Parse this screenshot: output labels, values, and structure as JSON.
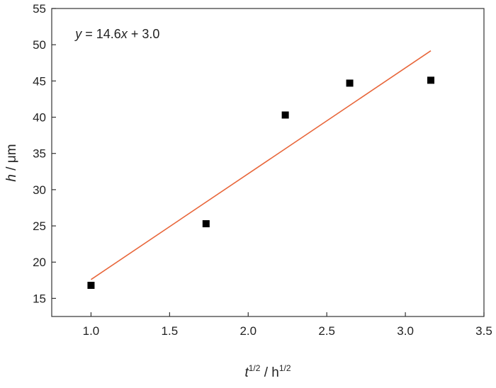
{
  "chart_data": {
    "type": "scatter",
    "title": "",
    "xlabel": {
      "var": "t",
      "var_sup": "1/2",
      "sep": " / h",
      "unit_sup": "1/2"
    },
    "ylabel": {
      "var": "h",
      "rest": " / μm"
    },
    "xlim": [
      0.75,
      3.5
    ],
    "ylim": [
      12.5,
      55
    ],
    "x_ticks": [
      "1.0",
      "1.5",
      "2.0",
      "2.5",
      "3.0",
      "3.5"
    ],
    "y_ticks": [
      "15",
      "20",
      "25",
      "30",
      "35",
      "40",
      "45",
      "50",
      "55"
    ],
    "grid": false,
    "legend": "none",
    "series": [
      {
        "marker": "square",
        "color": "#000000",
        "x": [
          1.0,
          1.732,
          2.236,
          2.646,
          3.162
        ],
        "y": [
          16.8,
          25.3,
          40.3,
          44.7,
          45.1
        ]
      }
    ],
    "fit_line": {
      "color": "#e8663a",
      "slope": 14.6,
      "intercept": 3.0,
      "x_range": [
        1.0,
        3.162
      ]
    },
    "annotation": {
      "y_var": "y",
      "mid": " = 14.6",
      "x_var": "x",
      "end": " + 3.0",
      "x": 0.9,
      "y": 51.5
    }
  }
}
